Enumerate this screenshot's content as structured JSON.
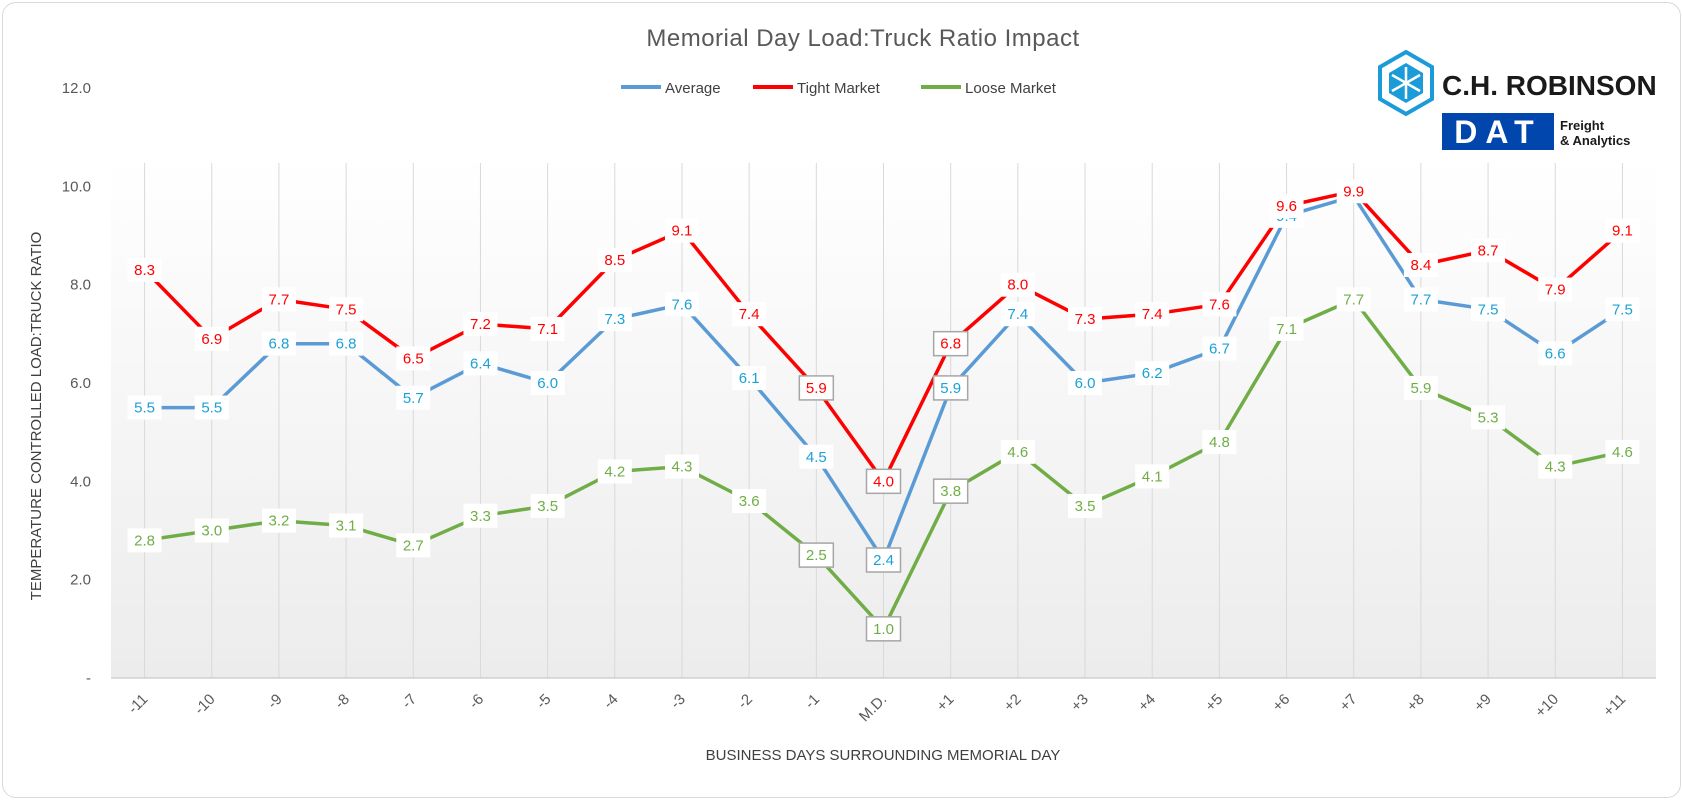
{
  "chart_data": {
    "type": "line",
    "title": "Memorial Day Load:Truck Ratio Impact",
    "xlabel": "BUSINESS DAYS SURROUNDING MEMORIAL DAY",
    "ylabel": "TEMPERATURE CONTROLLED LOAD:TRUCK RATIO",
    "categories": [
      "-11",
      "-10",
      "-9",
      "-8",
      "-7",
      "-6",
      "-5",
      "-4",
      "-3",
      "-2",
      "-1",
      "M.D.",
      "+1",
      "+2",
      "+3",
      "+4",
      "+5",
      "+6",
      "+7",
      "+8",
      "+9",
      "+10",
      "+11"
    ],
    "yticks": [
      "-",
      "2.0",
      "4.0",
      "6.0",
      "8.0",
      "10.0",
      "12.0"
    ],
    "ylim": [
      0,
      12
    ],
    "grid": "vertical",
    "legend_position": "top-center",
    "series": [
      {
        "name": "Average",
        "color": "#5B9BD5",
        "label_color": "#1BA1D6",
        "values": [
          5.5,
          5.5,
          6.8,
          6.8,
          5.7,
          6.4,
          6.0,
          7.3,
          7.6,
          6.1,
          4.5,
          2.4,
          5.9,
          7.4,
          6.0,
          6.2,
          6.7,
          9.4,
          9.8,
          7.7,
          7.5,
          6.6,
          7.5
        ],
        "labels": [
          "5.5",
          "5.5",
          "6.8",
          "6.8",
          "5.7",
          "6.4",
          "6.0",
          "7.3",
          "7.6",
          "6.1",
          "4.5",
          "2.4",
          "5.9",
          "7.4",
          "6.0",
          "6.2",
          "6.7",
          "9.4",
          "",
          "7.7",
          "7.5",
          "6.6",
          "7.5"
        ]
      },
      {
        "name": "Tight Market",
        "color": "#FF0000",
        "label_color": "#FF0000",
        "values": [
          8.3,
          6.9,
          7.7,
          7.5,
          6.5,
          7.2,
          7.1,
          8.5,
          9.1,
          7.4,
          5.9,
          4.0,
          6.8,
          8.0,
          7.3,
          7.4,
          7.6,
          9.6,
          9.9,
          8.4,
          8.7,
          7.9,
          9.1
        ],
        "labels": [
          "8.3",
          "6.9",
          "7.7",
          "7.5",
          "6.5",
          "7.2",
          "7.1",
          "8.5",
          "9.1",
          "7.4",
          "5.9",
          "4.0",
          "6.8",
          "8.0",
          "7.3",
          "7.4",
          "7.6",
          "9.6",
          "9.9",
          "8.4",
          "8.7",
          "7.9",
          "9.1"
        ]
      },
      {
        "name": "Loose Market",
        "color": "#70AD47",
        "label_color": "#70AD47",
        "values": [
          2.8,
          3.0,
          3.2,
          3.1,
          2.7,
          3.3,
          3.5,
          4.2,
          4.3,
          3.6,
          2.5,
          1.0,
          3.8,
          4.6,
          3.5,
          4.1,
          4.8,
          7.1,
          7.7,
          5.9,
          5.3,
          4.3,
          4.6
        ],
        "labels": [
          "2.8",
          "3.0",
          "3.2",
          "3.1",
          "2.7",
          "3.3",
          "3.5",
          "4.2",
          "4.3",
          "3.6",
          "2.5",
          "1.0",
          "3.8",
          "4.6",
          "3.5",
          "4.1",
          "4.8",
          "7.1",
          "7.7",
          "5.9",
          "5.3",
          "4.3",
          "4.6"
        ]
      }
    ]
  },
  "logos": {
    "chr_name": "C.H. ROBINSON",
    "dat_name": "DAT",
    "dat_sub1": "Freight",
    "dat_sub2": "& Analytics",
    "chr_color": "#1B9CD8",
    "dat_color": "#0046AD"
  }
}
